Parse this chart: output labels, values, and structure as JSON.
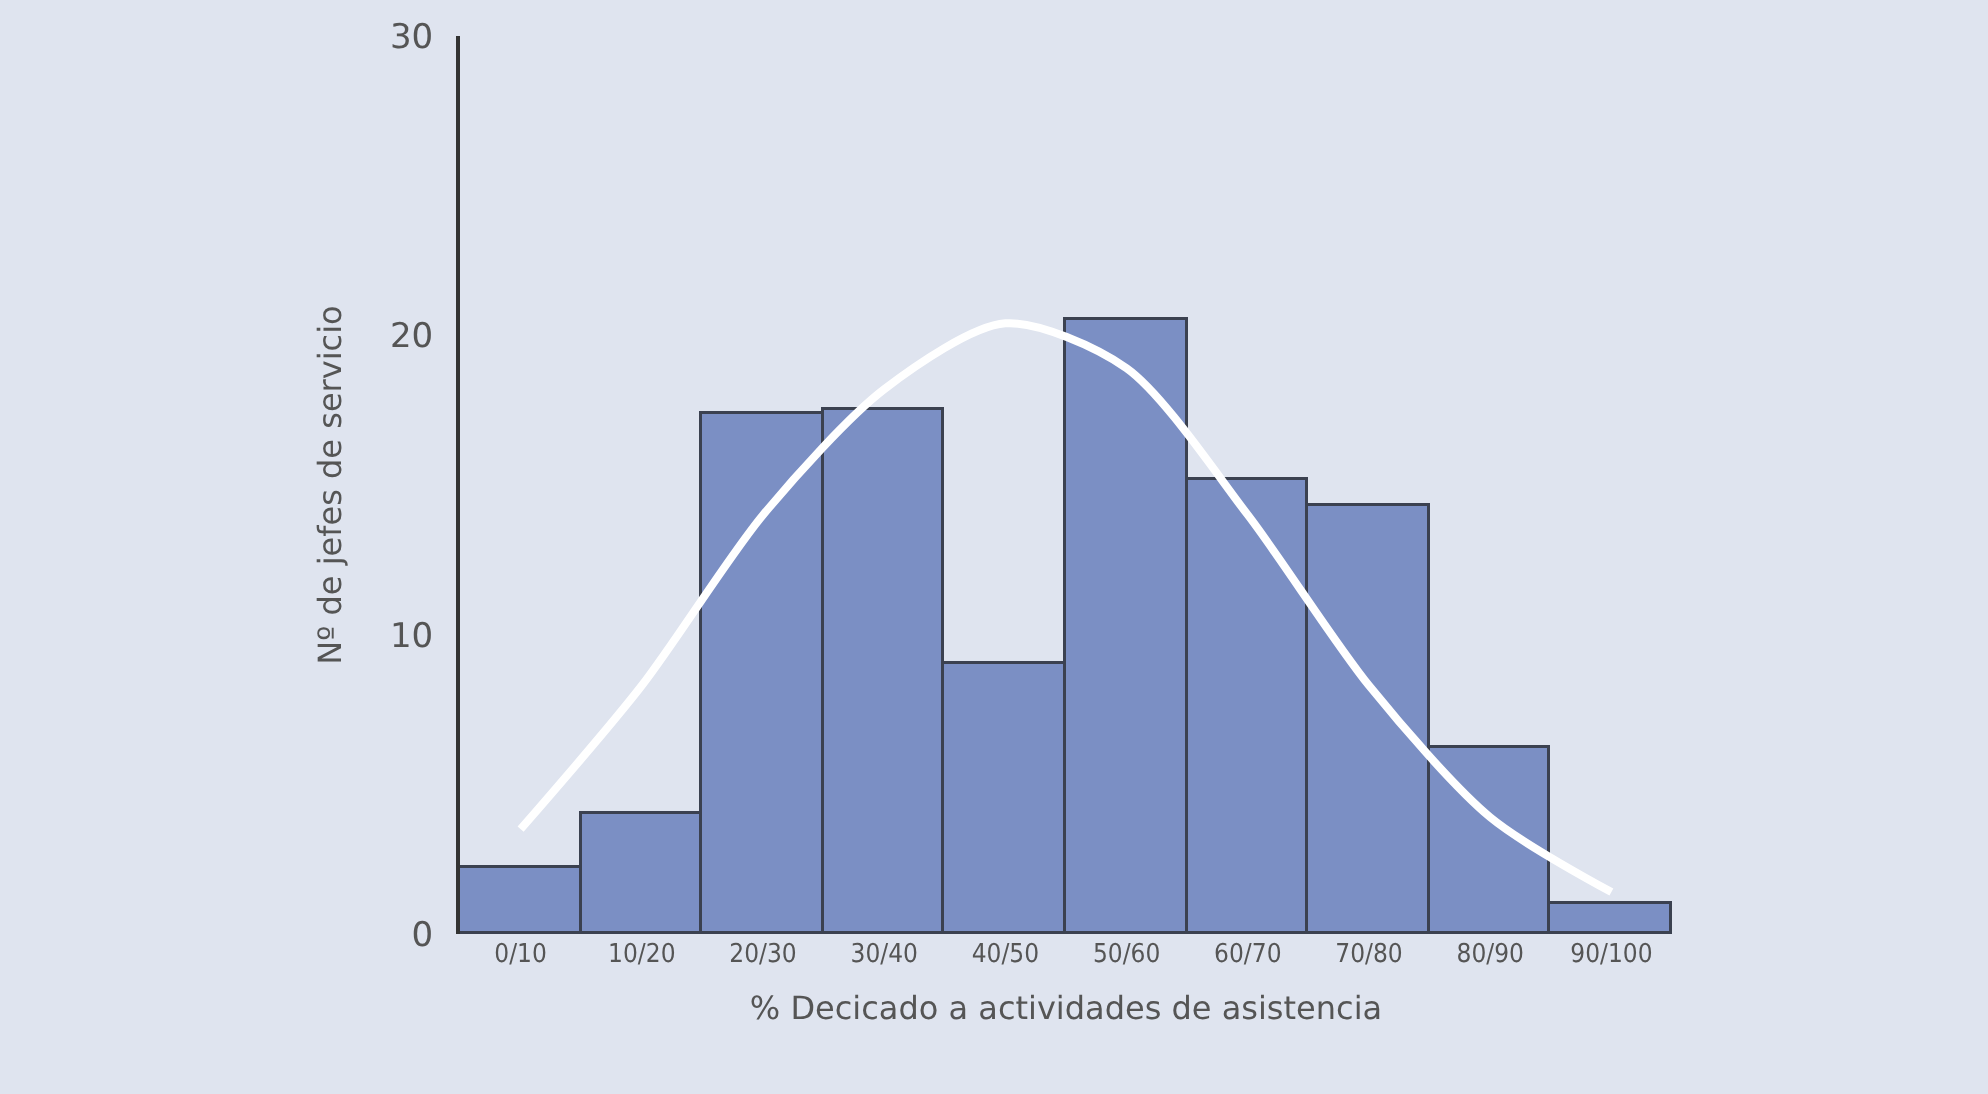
{
  "chart_data": {
    "type": "bar",
    "xlabel": "% Decicado a actividades de asistencia",
    "ylabel": "Nº de jefes de servicio",
    "categories": [
      "0/10",
      "10/20",
      "20/30",
      "30/40",
      "40/50",
      "50/60",
      "60/70",
      "70/80",
      "80/90",
      "90/100"
    ],
    "values": [
      2.2,
      4,
      17.4,
      17.5,
      9,
      20.5,
      15.2,
      14.3,
      6.2,
      1
    ],
    "color": "#7b8fc4",
    "series": [
      {
        "type": "line",
        "color": "#ffffff",
        "values": [
          3.5,
          8.3,
          14,
          18.2,
          20.4,
          18.9,
          14,
          8.3,
          3.9,
          1.4
        ]
      }
    ],
    "ylim": [
      0,
      30
    ],
    "yticks": [
      0,
      10,
      20,
      30
    ],
    "grid": false,
    "marker": "none"
  }
}
